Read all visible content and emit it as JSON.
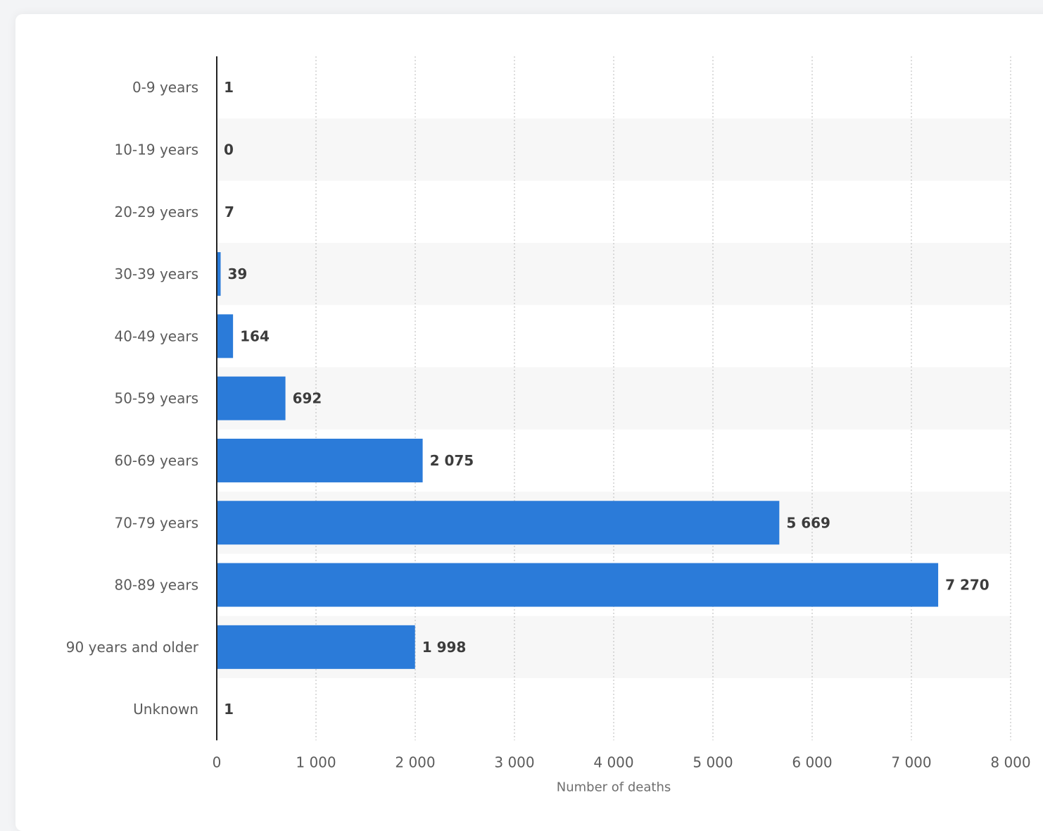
{
  "chart_data": {
    "type": "bar",
    "orientation": "horizontal",
    "categories": [
      "0-9 years",
      "10-19 years",
      "20-29 years",
      "30-39 years",
      "40-49 years",
      "50-59 years",
      "60-69 years",
      "70-79 years",
      "80-89 years",
      "90 years and older",
      "Unknown"
    ],
    "values": [
      1,
      0,
      7,
      39,
      164,
      692,
      2075,
      5669,
      7270,
      1998,
      1
    ],
    "value_labels": [
      "1",
      "0",
      "7",
      "39",
      "164",
      "692",
      "2 075",
      "5 669",
      "7 270",
      "1 998",
      "1"
    ],
    "xlabel": "Number of deaths",
    "ylabel": "",
    "xlim": [
      0,
      8000
    ],
    "xticks": [
      0,
      1000,
      2000,
      3000,
      4000,
      5000,
      6000,
      7000,
      8000
    ],
    "xtick_labels": [
      "0",
      "1 000",
      "2 000",
      "3 000",
      "4 000",
      "5 000",
      "6 000",
      "7 000",
      "8 000"
    ],
    "grid": "vertical-dotted",
    "alternating_row_bands": true,
    "colors": {
      "bar": "#2b7bd9",
      "band": "#f7f7f7",
      "grid": "#c4c4c4",
      "axis": "#222222"
    }
  }
}
